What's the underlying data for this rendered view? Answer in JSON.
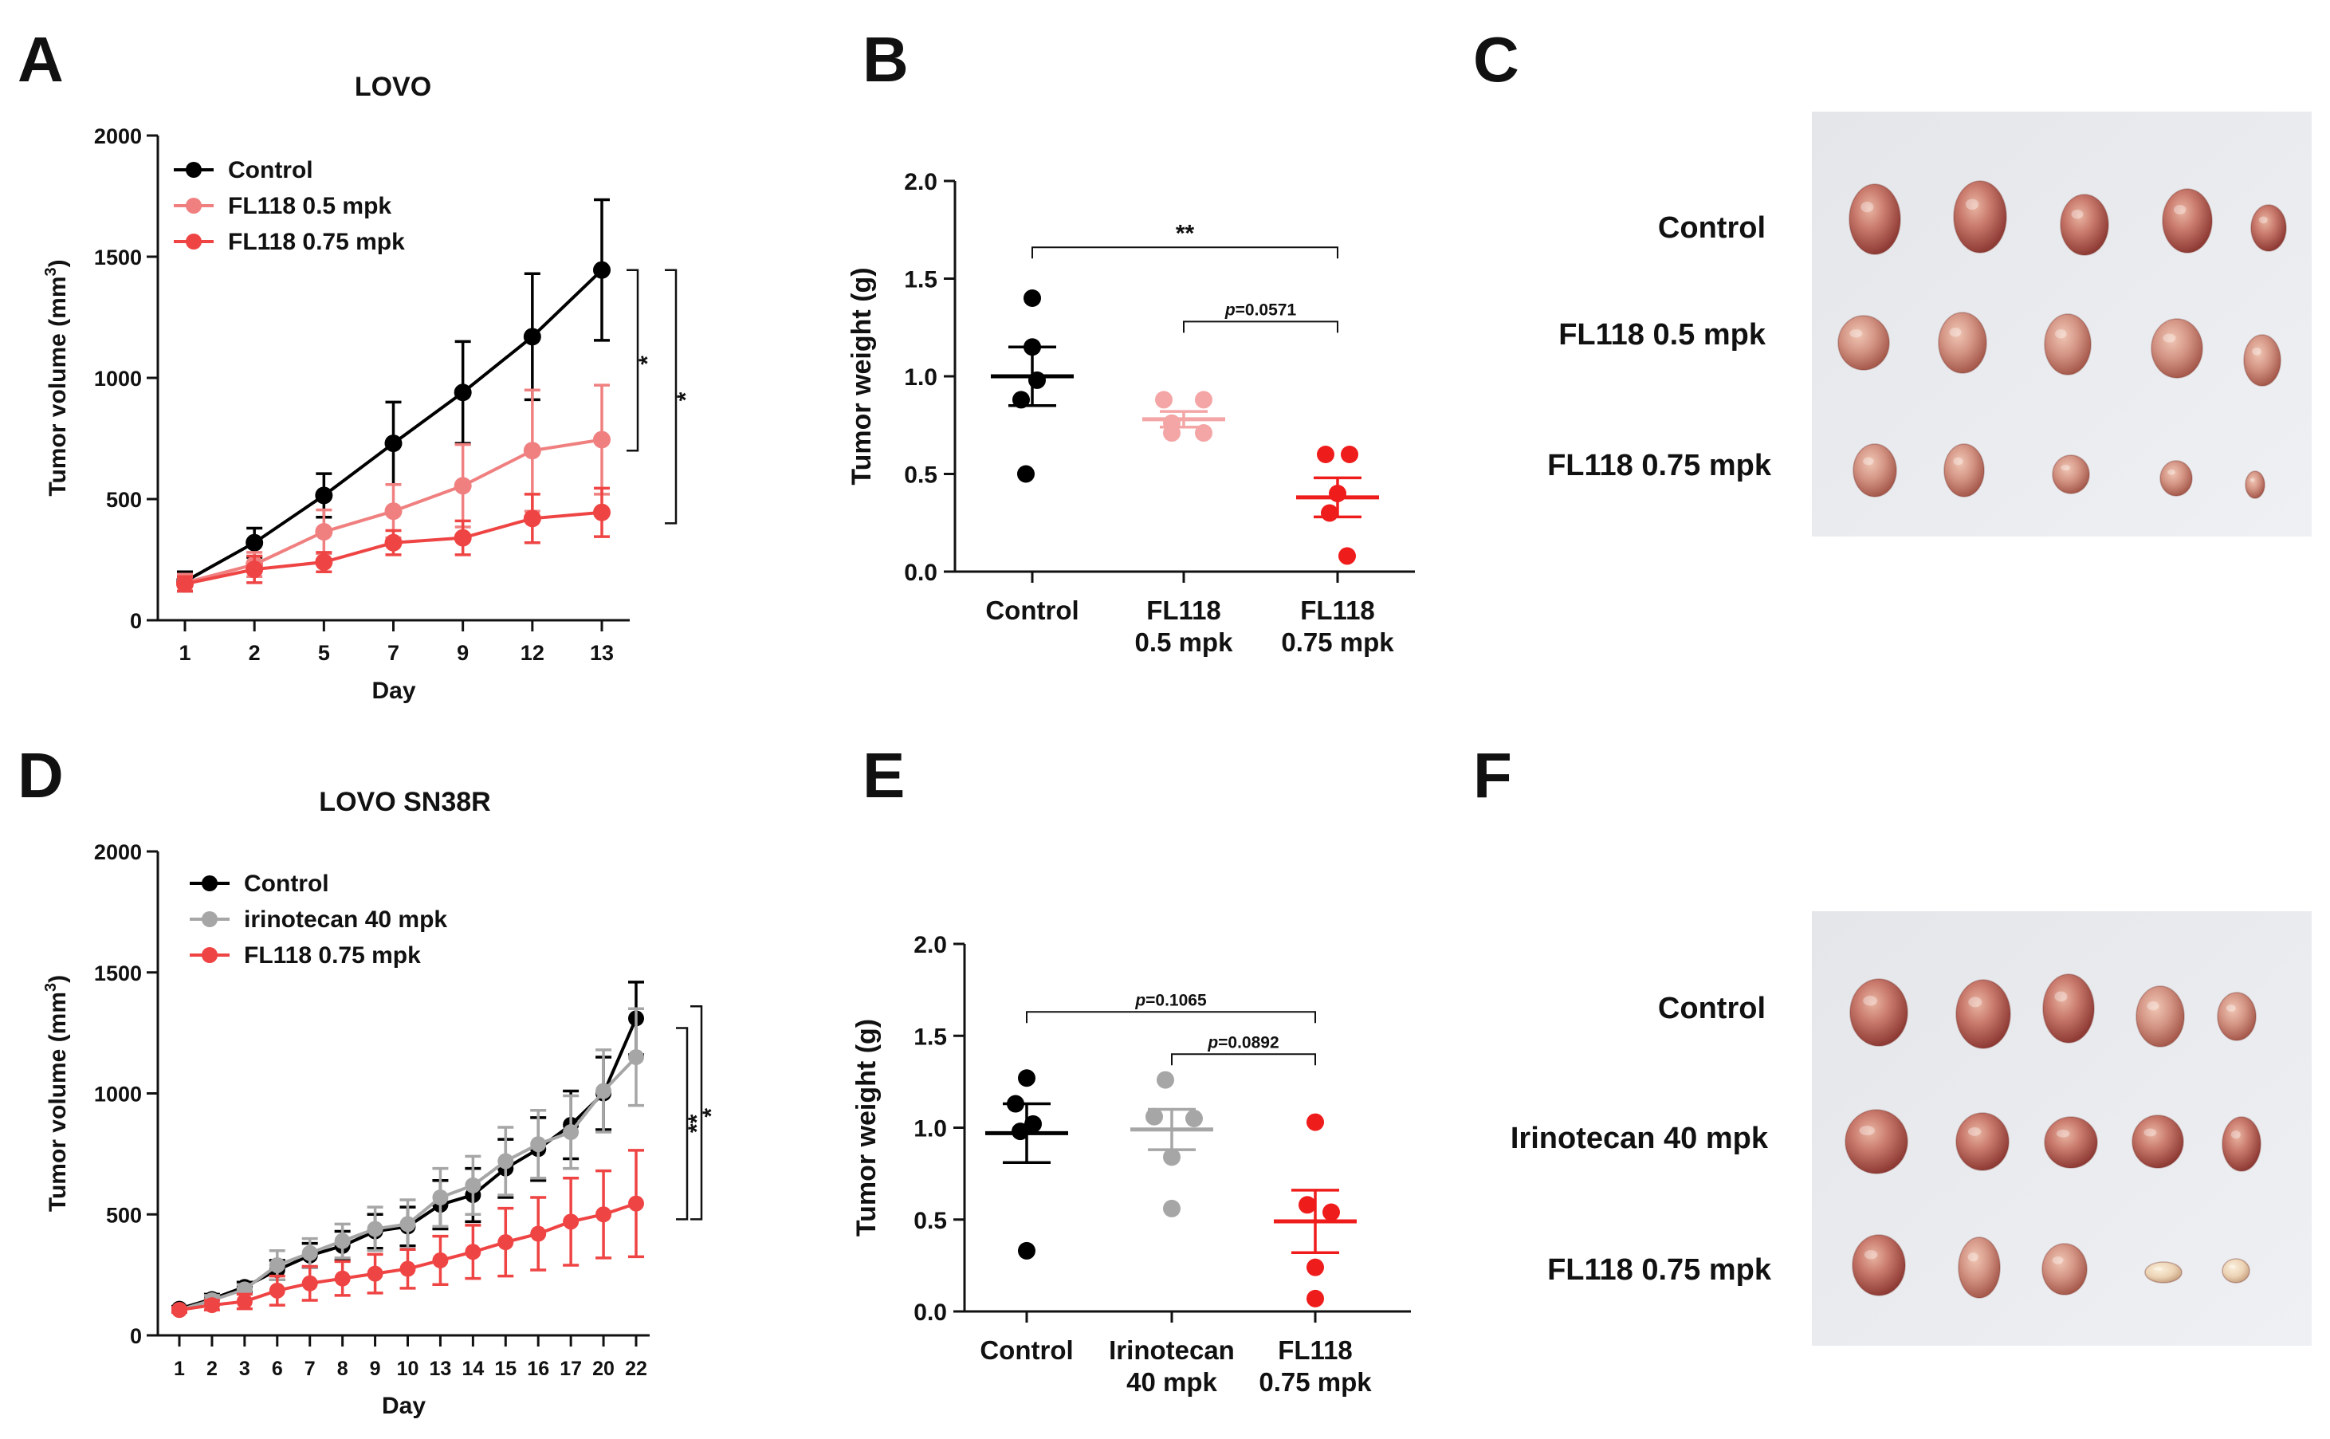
{
  "panels": {
    "A": "A",
    "B": "B",
    "C": "C",
    "D": "D",
    "E": "E",
    "F": "F"
  },
  "chart_data": [
    {
      "id": "A",
      "type": "line",
      "title": "LOVO",
      "xlabel": "Day",
      "ylabel": "Tumor volume (mm³)",
      "categories": [
        "1",
        "2",
        "5",
        "7",
        "9",
        "12",
        "13"
      ],
      "ylim": [
        0,
        2000
      ],
      "yticks": [
        0,
        500,
        1000,
        1500,
        2000
      ],
      "legend_position": "top-left",
      "series": [
        {
          "name": "Control",
          "color": "#000000",
          "values": [
            160,
            320,
            515,
            730,
            940,
            1170,
            1445
          ],
          "err": [
            40,
            60,
            90,
            170,
            210,
            260,
            290
          ]
        },
        {
          "name": "FL118 0.5 mpk",
          "color": "#f08080",
          "values": [
            155,
            230,
            365,
            450,
            555,
            700,
            745
          ],
          "err": [
            35,
            50,
            90,
            110,
            170,
            250,
            225
          ]
        },
        {
          "name": "FL118 0.75 mpk",
          "color": "#ef4444",
          "values": [
            150,
            210,
            240,
            320,
            340,
            420,
            445
          ],
          "err": [
            30,
            55,
            40,
            50,
            70,
            100,
            100
          ]
        }
      ],
      "annotations": [
        "*",
        "*"
      ]
    },
    {
      "id": "B",
      "type": "scatter",
      "xlabel": "",
      "ylabel": "Tumor weight (g)",
      "categories": [
        "Control",
        "FL118\n0.5 mpk",
        "FL118\n0.75 mpk"
      ],
      "ylim": [
        0,
        2.0
      ],
      "yticks": [
        "0.0",
        "0.5",
        "1.0",
        "1.5",
        "2.0"
      ],
      "series": [
        {
          "name": "Control",
          "color": "#000000",
          "points": [
            1.4,
            1.15,
            0.98,
            0.88,
            0.5
          ],
          "mean": 1.0,
          "sem": 0.15
        },
        {
          "name": "FL118 0.5 mpk",
          "color": "#f4a5a5",
          "points": [
            0.88,
            0.88,
            0.76,
            0.71,
            0.71
          ],
          "mean": 0.78,
          "sem": 0.04
        },
        {
          "name": "FL118 0.75 mpk",
          "color": "#ef1c1c",
          "points": [
            0.6,
            0.6,
            0.4,
            0.3,
            0.08
          ],
          "mean": 0.38,
          "sem": 0.1
        }
      ],
      "annotations": [
        "**",
        "p=0.0571"
      ]
    },
    {
      "id": "D",
      "type": "line",
      "title": "LOVO SN38R",
      "xlabel": "Day",
      "ylabel": "Tumor volume (mm³)",
      "categories": [
        "1",
        "2",
        "3",
        "6",
        "7",
        "8",
        "9",
        "10",
        "13",
        "14",
        "15",
        "16",
        "17",
        "20",
        "22"
      ],
      "ylim": [
        0,
        2000
      ],
      "yticks": [
        0,
        500,
        1000,
        1500,
        2000
      ],
      "legend_position": "top-left",
      "series": [
        {
          "name": "Control",
          "color": "#000000",
          "values": [
            110,
            150,
            200,
            270,
            330,
            370,
            430,
            450,
            540,
            580,
            690,
            770,
            870,
            1000,
            1310
          ],
          "err": [
            10,
            20,
            20,
            40,
            50,
            60,
            70,
            80,
            100,
            110,
            120,
            130,
            140,
            150,
            150
          ]
        },
        {
          "name": "irinotecan 40 mpk",
          "color": "#a6a6a6",
          "values": [
            105,
            145,
            190,
            290,
            340,
            390,
            440,
            460,
            570,
            620,
            720,
            790,
            840,
            1010,
            1150
          ],
          "err": [
            10,
            20,
            20,
            60,
            60,
            70,
            90,
            100,
            120,
            120,
            140,
            140,
            150,
            170,
            200
          ]
        },
        {
          "name": "FL118 0.75 mpk",
          "color": "#ef4444",
          "values": [
            105,
            125,
            140,
            185,
            215,
            235,
            255,
            275,
            310,
            345,
            385,
            420,
            470,
            500,
            545
          ],
          "err": [
            10,
            20,
            30,
            60,
            70,
            70,
            80,
            80,
            100,
            110,
            140,
            150,
            180,
            180,
            220
          ]
        }
      ],
      "annotations": [
        "**",
        "*"
      ]
    },
    {
      "id": "E",
      "type": "scatter",
      "xlabel": "",
      "ylabel": "Tumor weight (g)",
      "categories": [
        "Control",
        "Irinotecan\n40 mpk",
        "FL118\n0.75 mpk"
      ],
      "ylim": [
        0,
        2.0
      ],
      "yticks": [
        "0.0",
        "0.5",
        "1.0",
        "1.5",
        "2.0"
      ],
      "series": [
        {
          "name": "Control",
          "color": "#000000",
          "points": [
            1.27,
            1.13,
            1.02,
            0.98,
            0.33
          ],
          "mean": 0.97,
          "sem": 0.16
        },
        {
          "name": "Irinotecan 40 mpk",
          "color": "#a6a6a6",
          "points": [
            1.26,
            1.06,
            1.05,
            0.84,
            0.56
          ],
          "mean": 0.99,
          "sem": 0.11
        },
        {
          "name": "FL118 0.75 mpk",
          "color": "#ef1c1c",
          "points": [
            1.03,
            0.58,
            0.54,
            0.24,
            0.07
          ],
          "mean": 0.49,
          "sem": 0.17
        }
      ],
      "annotations": [
        "p=0.1065",
        "p=0.0892"
      ]
    }
  ],
  "photos": {
    "C": {
      "rows": [
        "Control",
        "FL118 0.5 mpk",
        "FL118 0.75 mpk"
      ]
    },
    "F": {
      "rows": [
        "Control",
        "Irinotecan 40 mpk",
        "FL118 0.75 mpk"
      ]
    }
  }
}
